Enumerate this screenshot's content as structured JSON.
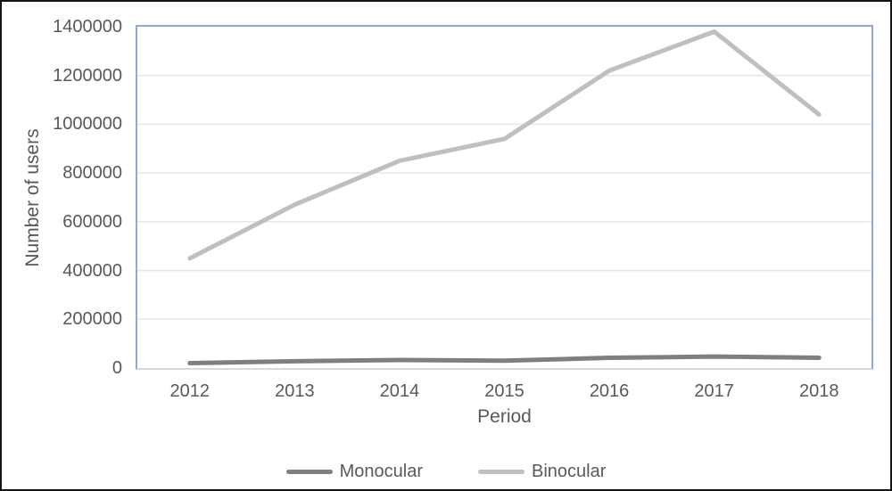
{
  "chart_data": {
    "type": "line",
    "title": "",
    "xlabel": "Period",
    "ylabel": "Number of users",
    "categories": [
      "2012",
      "2013",
      "2014",
      "2015",
      "2016",
      "2017",
      "2018"
    ],
    "series": [
      {
        "name": "Monocular",
        "color": "#7f7f7f",
        "values": [
          20000,
          28000,
          33000,
          30000,
          42000,
          47000,
          42000
        ]
      },
      {
        "name": "Binocular",
        "color": "#bfbfbf",
        "values": [
          450000,
          670000,
          850000,
          940000,
          1220000,
          1380000,
          1040000
        ]
      }
    ],
    "ylim": [
      0,
      1400000
    ],
    "yticks": [
      0,
      200000,
      400000,
      600000,
      800000,
      1000000,
      1200000,
      1400000
    ],
    "grid": true,
    "legend_position": "bottom"
  },
  "style": {
    "figure_border_color": "#141414",
    "plot_border_color": "#8ea9db",
    "gridline_color": "#e7e7e7",
    "axis_line_color": "#d9d9d9",
    "text_color": "#595959",
    "background": "#ffffff"
  }
}
